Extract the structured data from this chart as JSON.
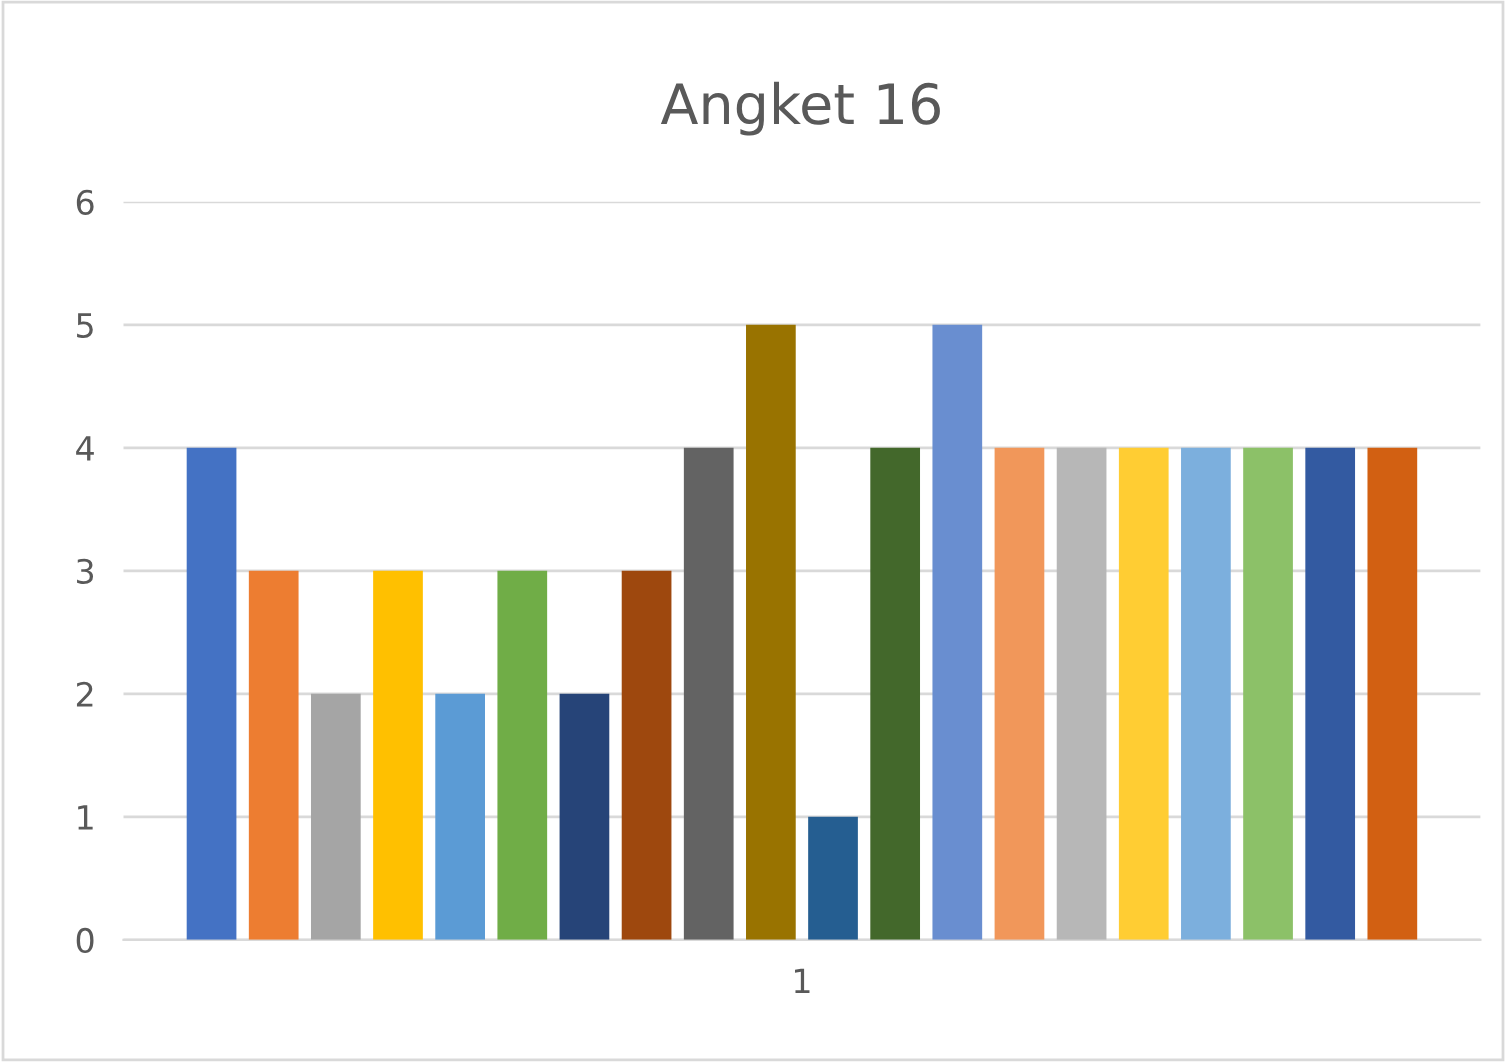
{
  "chart_data": {
    "type": "bar",
    "title": "Angket 16",
    "categories": [
      "1"
    ],
    "series": [
      {
        "color": "#4472c4",
        "values": [
          4
        ]
      },
      {
        "color": "#ed7d31",
        "values": [
          3
        ]
      },
      {
        "color": "#a5a5a5",
        "values": [
          2
        ]
      },
      {
        "color": "#ffc000",
        "values": [
          3
        ]
      },
      {
        "color": "#5b9bd5",
        "values": [
          2
        ]
      },
      {
        "color": "#70ad47",
        "values": [
          3
        ]
      },
      {
        "color": "#264478",
        "values": [
          2
        ]
      },
      {
        "color": "#9e480e",
        "values": [
          3
        ]
      },
      {
        "color": "#636363",
        "values": [
          4
        ]
      },
      {
        "color": "#997300",
        "values": [
          5
        ]
      },
      {
        "color": "#255e91",
        "values": [
          1
        ]
      },
      {
        "color": "#43682b",
        "values": [
          4
        ]
      },
      {
        "color": "#698ed0",
        "values": [
          5
        ]
      },
      {
        "color": "#f1975a",
        "values": [
          4
        ]
      },
      {
        "color": "#b7b7b7",
        "values": [
          4
        ]
      },
      {
        "color": "#ffcd33",
        "values": [
          4
        ]
      },
      {
        "color": "#7cafdd",
        "values": [
          4
        ]
      },
      {
        "color": "#8cc168",
        "values": [
          4
        ]
      },
      {
        "color": "#335aa1",
        "values": [
          4
        ]
      },
      {
        "color": "#d26012",
        "values": [
          4
        ]
      }
    ],
    "ylim": [
      0,
      6
    ],
    "yticks": [
      0,
      1,
      2,
      3,
      4,
      5,
      6
    ],
    "grid": "y",
    "legend": false
  }
}
